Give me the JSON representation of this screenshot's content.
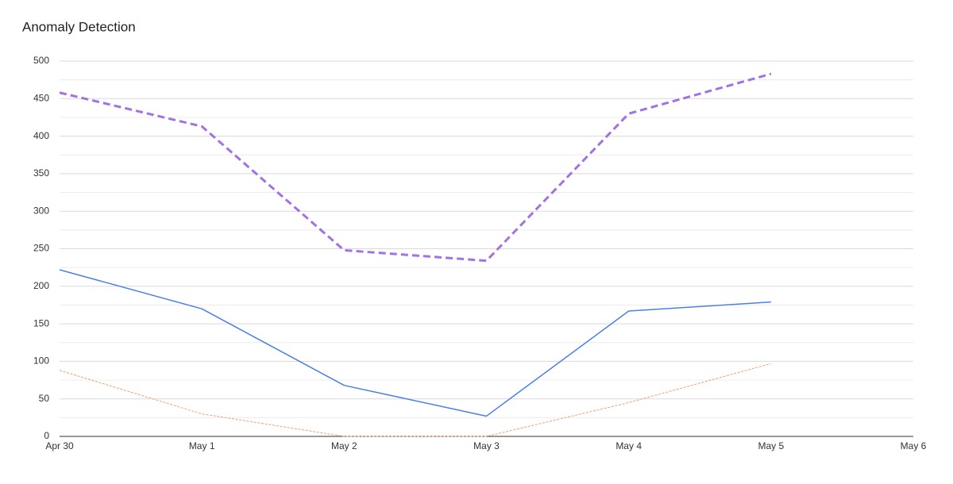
{
  "chart_data": {
    "type": "line",
    "title": "Anomaly Detection",
    "categories": [
      "Apr 30",
      "May 1",
      "May 2",
      "May 3",
      "May 4",
      "May 5",
      "May 6"
    ],
    "series": [
      {
        "color": "#a371e3",
        "line_style": "dashed",
        "line_width": 3,
        "values": [
          458,
          413,
          248,
          234,
          430,
          483,
          null
        ]
      },
      {
        "color": "#4a80e8",
        "line_style": "solid",
        "line_width": 1.5,
        "values": [
          222,
          170,
          68,
          27,
          167,
          179,
          null
        ]
      },
      {
        "color": "#f2a06f",
        "line_style": "dashed",
        "line_width": 1,
        "values": [
          88,
          30,
          0,
          0,
          45,
          97,
          null
        ]
      }
    ],
    "ylim": [
      0,
      500
    ],
    "yticks": [
      0,
      50,
      100,
      150,
      200,
      250,
      300,
      350,
      400,
      450,
      500
    ],
    "grid": true
  }
}
